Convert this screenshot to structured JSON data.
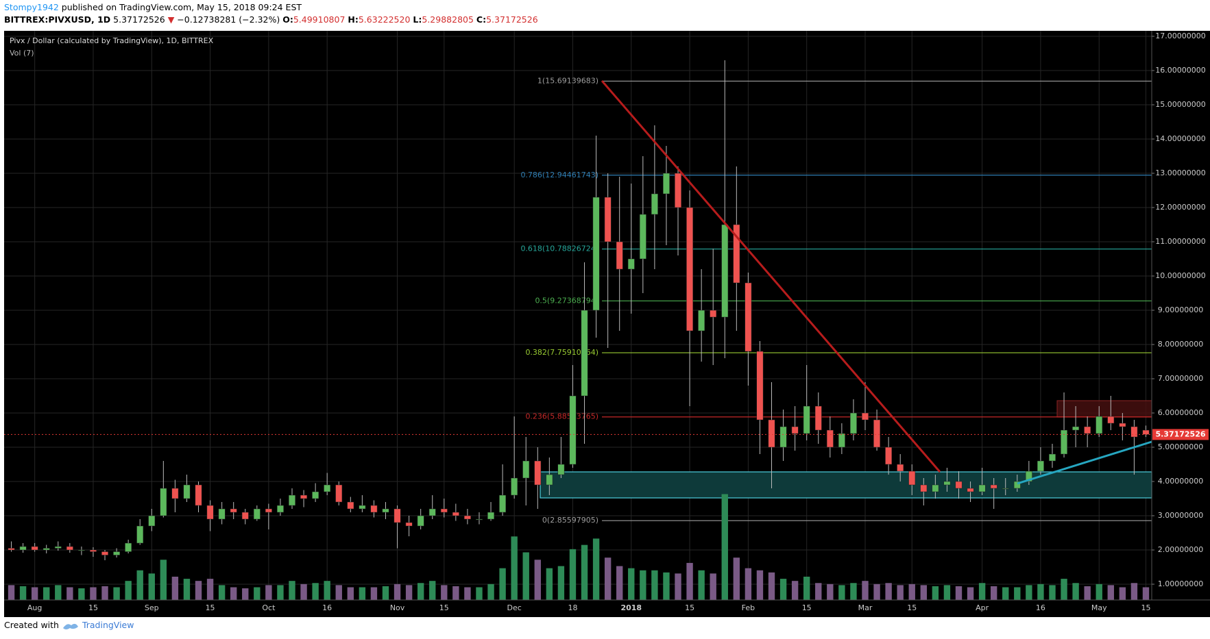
{
  "header": {
    "author": "Stompy1942",
    "published": "published on TradingView.com, May 15, 2018 09:24 EST",
    "symbol": "BITTREX:PIVXUSD, 1D",
    "last": "5.37172526",
    "arrow": "▼",
    "change": "−0.12738281 (−2.32%)",
    "o_label": "O:",
    "o": "5.49910807",
    "h_label": "H:",
    "h": "5.63222520",
    "l_label": "L:",
    "l": "5.29882805",
    "c_label": "C:",
    "c": "5.37172526"
  },
  "chart_data": {
    "type": "candlestick",
    "title": "Pivx / Dollar (calculated by TradingView), 1D, BITTREX",
    "subtitle": "Vol (7)",
    "categories": [
      null,
      null,
      "Aug",
      null,
      null,
      null,
      null,
      "15",
      null,
      null,
      null,
      null,
      "Sep",
      null,
      null,
      null,
      null,
      "15",
      null,
      null,
      null,
      null,
      "Oct",
      null,
      null,
      null,
      null,
      "16",
      null,
      null,
      null,
      null,
      null,
      "Nov",
      null,
      null,
      null,
      "15",
      null,
      null,
      null,
      null,
      null,
      "Dec",
      null,
      null,
      null,
      null,
      "18",
      null,
      null,
      null,
      null,
      "2018",
      null,
      null,
      null,
      null,
      "15",
      null,
      null,
      null,
      null,
      "Feb",
      null,
      null,
      null,
      null,
      "15",
      null,
      null,
      null,
      null,
      "Mar",
      null,
      null,
      null,
      "15",
      null,
      null,
      null,
      null,
      null,
      "Apr",
      null,
      null,
      null,
      null,
      "16",
      null,
      null,
      null,
      null,
      "May",
      null,
      null,
      null,
      "15"
    ],
    "open": [
      2.05,
      2.0,
      2.1,
      2.0,
      2.05,
      2.1,
      2.0,
      2.0,
      1.95,
      1.85,
      1.95,
      2.2,
      2.7,
      3.0,
      3.8,
      3.5,
      3.9,
      3.3,
      2.9,
      3.2,
      3.1,
      2.9,
      3.2,
      3.1,
      3.3,
      3.6,
      3.5,
      3.7,
      3.9,
      3.4,
      3.2,
      3.3,
      3.1,
      3.2,
      2.8,
      2.7,
      3.0,
      3.2,
      3.1,
      3.0,
      2.9,
      2.9,
      3.1,
      3.6,
      4.1,
      4.6,
      3.9,
      4.2,
      4.5,
      6.5,
      9.0,
      12.3,
      11.0,
      10.2,
      10.5,
      11.8,
      12.4,
      13.0,
      12.0,
      8.4,
      9.0,
      8.8,
      11.5,
      9.8,
      7.8,
      5.8,
      5.0,
      5.6,
      5.4,
      6.2,
      5.5,
      5.0,
      5.4,
      6.0,
      5.8,
      5.0,
      4.5,
      4.3,
      3.9,
      3.7,
      3.9,
      4.0,
      3.8,
      3.7,
      3.9,
      3.8,
      3.8,
      4.0,
      4.3,
      4.6,
      4.8,
      5.5,
      5.6,
      5.4,
      5.9,
      5.7,
      5.6,
      5.49910807
    ],
    "high": [
      2.25,
      2.2,
      2.2,
      2.15,
      2.25,
      2.2,
      2.1,
      2.08,
      2.0,
      2.05,
      2.3,
      2.9,
      3.2,
      4.6,
      4.05,
      4.2,
      4.0,
      3.45,
      3.4,
      3.4,
      3.2,
      3.3,
      3.35,
      3.5,
      3.8,
      3.75,
      3.95,
      4.25,
      4.0,
      3.55,
      3.6,
      3.45,
      3.4,
      3.3,
      3.0,
      3.2,
      3.6,
      3.5,
      3.35,
      3.2,
      3.1,
      3.4,
      4.5,
      5.9,
      5.3,
      5.0,
      4.7,
      5.3,
      7.4,
      10.4,
      14.1,
      13.0,
      12.9,
      12.7,
      13.5,
      14.4,
      13.8,
      13.2,
      12.5,
      10.2,
      10.8,
      16.3,
      13.2,
      10.1,
      8.1,
      6.9,
      6.1,
      6.2,
      7.4,
      6.6,
      5.9,
      5.7,
      6.4,
      6.9,
      6.1,
      5.3,
      4.8,
      4.5,
      4.1,
      4.2,
      4.4,
      4.3,
      4.0,
      4.4,
      4.1,
      4.1,
      4.2,
      4.6,
      5.0,
      5.1,
      6.6,
      6.2,
      5.9,
      6.2,
      6.5,
      6.0,
      5.8,
      5.6322252
    ],
    "low": [
      1.95,
      1.92,
      1.95,
      1.9,
      1.98,
      1.92,
      1.85,
      1.8,
      1.7,
      1.78,
      1.9,
      2.15,
      2.55,
      2.95,
      3.1,
      3.4,
      3.1,
      2.55,
      2.75,
      2.9,
      2.75,
      2.85,
      2.6,
      3.0,
      3.2,
      3.25,
      3.4,
      3.6,
      3.3,
      3.1,
      3.1,
      2.95,
      2.9,
      2.05,
      2.4,
      2.6,
      2.9,
      2.95,
      2.85,
      2.75,
      2.75,
      2.85,
      3.0,
      3.5,
      3.3,
      3.2,
      3.6,
      4.1,
      4.4,
      5.1,
      8.2,
      7.9,
      8.4,
      8.9,
      9.5,
      10.2,
      10.9,
      10.6,
      6.2,
      7.5,
      7.4,
      7.6,
      8.4,
      6.8,
      4.8,
      3.8,
      4.6,
      4.9,
      5.2,
      5.1,
      4.7,
      4.8,
      5.2,
      5.5,
      4.9,
      4.2,
      4.0,
      3.6,
      3.3,
      3.5,
      3.7,
      3.5,
      3.4,
      3.6,
      3.2,
      3.6,
      3.7,
      3.9,
      4.2,
      4.4,
      4.7,
      5.0,
      5.0,
      5.3,
      5.5,
      5.2,
      4.2,
      5.29882805
    ],
    "close": [
      2.0,
      2.1,
      2.0,
      2.05,
      2.1,
      2.0,
      2.0,
      1.95,
      1.85,
      1.95,
      2.2,
      2.7,
      3.0,
      3.8,
      3.5,
      3.9,
      3.3,
      2.9,
      3.2,
      3.1,
      2.9,
      3.2,
      3.1,
      3.3,
      3.6,
      3.5,
      3.7,
      3.9,
      3.4,
      3.2,
      3.3,
      3.1,
      3.2,
      2.8,
      2.7,
      3.0,
      3.2,
      3.1,
      3.0,
      2.9,
      2.9,
      3.1,
      3.6,
      4.1,
      4.6,
      3.9,
      4.2,
      4.5,
      6.5,
      9.0,
      12.3,
      11.0,
      10.2,
      10.5,
      11.8,
      12.4,
      13.0,
      12.0,
      8.4,
      9.0,
      8.8,
      11.5,
      9.8,
      7.8,
      5.8,
      5.0,
      5.6,
      5.4,
      6.2,
      5.5,
      5.0,
      5.4,
      6.0,
      5.8,
      5.0,
      4.5,
      4.3,
      3.9,
      3.7,
      3.9,
      4.0,
      3.8,
      3.7,
      3.9,
      3.8,
      3.8,
      4.0,
      4.3,
      4.6,
      4.8,
      5.5,
      5.6,
      5.4,
      5.9,
      5.7,
      5.6,
      5.3,
      5.37172526
    ],
    "volume": [
      14,
      13,
      12,
      12,
      14,
      12,
      11,
      12,
      13,
      12,
      18,
      28,
      25,
      38,
      22,
      20,
      18,
      20,
      14,
      12,
      11,
      12,
      14,
      14,
      18,
      15,
      16,
      18,
      14,
      12,
      12,
      12,
      13,
      15,
      14,
      16,
      18,
      14,
      13,
      12,
      12,
      15,
      30,
      60,
      45,
      38,
      30,
      32,
      48,
      52,
      58,
      40,
      32,
      30,
      28,
      28,
      26,
      25,
      35,
      28,
      25,
      100,
      40,
      30,
      28,
      26,
      20,
      18,
      22,
      16,
      15,
      14,
      16,
      18,
      15,
      16,
      14,
      15,
      14,
      13,
      14,
      13,
      12,
      16,
      13,
      12,
      12,
      14,
      15,
      14,
      20,
      16,
      13,
      15,
      14,
      12,
      16,
      12
    ],
    "volume_lim": [
      0,
      110
    ],
    "ylim": [
      0.54,
      17.16
    ],
    "yticks": [
      {
        "value": 1,
        "label": "1.00000000"
      },
      {
        "value": 2,
        "label": "2.00000000"
      },
      {
        "value": 3,
        "label": "3.00000000"
      },
      {
        "value": 4,
        "label": "4.00000000"
      },
      {
        "value": 5,
        "label": "5.00000000"
      },
      {
        "value": 6,
        "label": "6.00000000"
      },
      {
        "value": 7,
        "label": "7.00000000"
      },
      {
        "value": 8,
        "label": "8.00000000"
      },
      {
        "value": 9,
        "label": "9.00000000"
      },
      {
        "value": 10,
        "label": "10.00000000"
      },
      {
        "value": 11,
        "label": "11.00000000"
      },
      {
        "value": 12,
        "label": "12.00000000"
      },
      {
        "value": 13,
        "label": "13.00000000"
      },
      {
        "value": 14,
        "label": "14.00000000"
      },
      {
        "value": 15,
        "label": "15.00000000"
      },
      {
        "value": 16,
        "label": "16.00000000"
      },
      {
        "value": 17,
        "label": "17.00000000"
      }
    ],
    "grid": true,
    "last_price": 5.37172526,
    "fib_levels": [
      {
        "value": 15.69139683,
        "label": "1(15.69139683)",
        "color": "#9e9e9e"
      },
      {
        "value": 12.94461743,
        "label": "0.786(12.94461743)",
        "color": "#2f7fb5"
      },
      {
        "value": 10.78826724,
        "label": "0.618(10.78826724)",
        "color": "#26a69a"
      },
      {
        "value": 9.27368794,
        "label": "0.5(9.27368794)",
        "color": "#4caf50"
      },
      {
        "value": 7.75910864,
        "label": "0.382(7.75910864)",
        "color": "#9acd32"
      },
      {
        "value": 5.88513765,
        "label": "0.236(5.88513765)",
        "color": "#c62828"
      },
      {
        "value": 2.85597905,
        "label": "0(2.85597905)",
        "color": "#9e9e9e"
      }
    ],
    "up_color": "#5cb85c",
    "down_color": "#ef5350",
    "volume_up_color": "#2e8b57",
    "volume_down_color": "#7a5a86"
  },
  "footer": {
    "created": "Created with",
    "brand": "TradingView"
  }
}
